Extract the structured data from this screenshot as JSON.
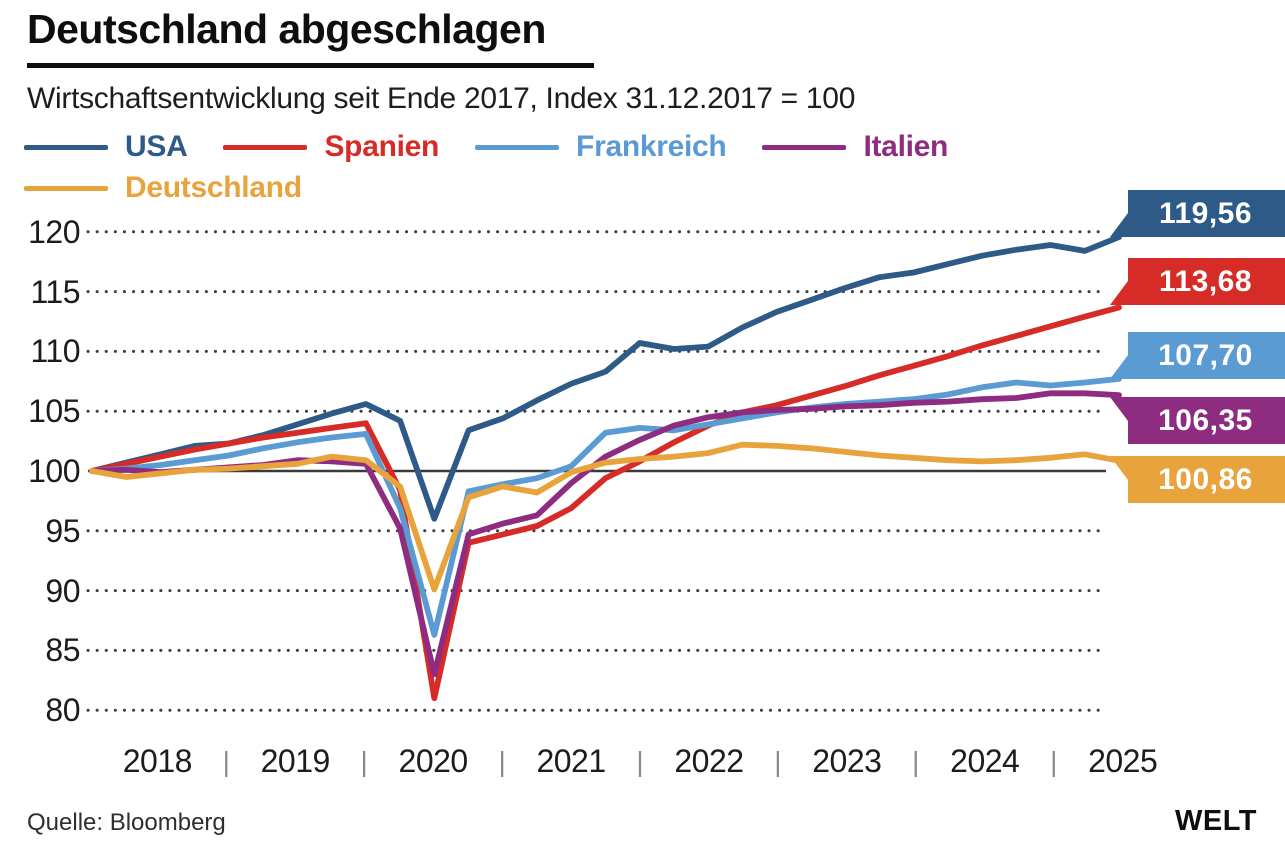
{
  "header": {
    "title": "Deutschland abgeschlagen",
    "subtitle": "Wirtschaftsentwicklung seit Ende 2017, Index 31.12.2017 = 100"
  },
  "legend": [
    {
      "label": "USA",
      "color": "#2d5a87"
    },
    {
      "label": "Spanien",
      "color": "#d62b26"
    },
    {
      "label": "Frankreich",
      "color": "#5a9bd4"
    },
    {
      "label": "Italien",
      "color": "#8e2c82"
    },
    {
      "label": "Deutschland",
      "color": "#e8a33d"
    }
  ],
  "footer": {
    "source": "Quelle: Bloomberg",
    "brand": "WELT"
  },
  "chart_data": {
    "type": "line",
    "title": "Deutschland abgeschlagen",
    "subtitle": "Wirtschaftsentwicklung seit Ende 2017, Index 31.12.2017 = 100",
    "legend_position": "top",
    "grid": "dotted horizontal, solid baseline at 100",
    "x_axis": {
      "tick_labels": [
        "2018",
        "2019",
        "2020",
        "2021",
        "2022",
        "2023",
        "2024",
        "2025"
      ],
      "separator": "|",
      "points": "quarterly from 2017-Q4 (=100) to 2025-Q2"
    },
    "y_axis": {
      "ticks": [
        120,
        115,
        110,
        105,
        100,
        95,
        90,
        85,
        80
      ],
      "range": [
        78,
        122
      ],
      "baseline": 100
    },
    "series": [
      {
        "name": "USA",
        "color": "#2d5a87",
        "final_label": "119,56",
        "final_value": 119.56,
        "values": [
          100,
          100.7,
          101.4,
          102.1,
          102.3,
          103.0,
          103.9,
          104.8,
          105.6,
          104.2,
          96.0,
          103.4,
          104.4,
          105.9,
          107.3,
          108.3,
          110.7,
          110.2,
          110.4,
          112.0,
          113.3,
          114.3,
          115.3,
          116.2,
          116.6,
          117.3,
          118.0,
          118.5,
          118.9,
          118.4,
          119.56
        ]
      },
      {
        "name": "Spanien",
        "color": "#d62b26",
        "final_label": "113,68",
        "final_value": 113.68,
        "values": [
          100,
          100.6,
          101.2,
          101.8,
          102.3,
          102.8,
          103.2,
          103.6,
          104.0,
          98.4,
          81.0,
          94.0,
          94.7,
          95.4,
          96.9,
          99.4,
          100.8,
          102.4,
          103.8,
          104.9,
          105.5,
          106.3,
          107.1,
          108.0,
          108.8,
          109.6,
          110.5,
          111.3,
          112.1,
          112.9,
          113.68
        ]
      },
      {
        "name": "Frankreich",
        "color": "#5a9bd4",
        "final_label": "107,70",
        "final_value": 107.7,
        "values": [
          100,
          100.2,
          100.5,
          100.9,
          101.3,
          101.9,
          102.4,
          102.8,
          103.1,
          96.9,
          86.3,
          98.3,
          98.9,
          99.4,
          100.4,
          103.2,
          103.6,
          103.4,
          103.9,
          104.4,
          104.9,
          105.3,
          105.6,
          105.8,
          106.0,
          106.4,
          107.0,
          107.4,
          107.15,
          107.4,
          107.7
        ]
      },
      {
        "name": "Italien",
        "color": "#8e2c82",
        "final_label": "106,35",
        "final_value": 106.35,
        "values": [
          100,
          100.1,
          99.9,
          100.1,
          100.3,
          100.5,
          100.9,
          100.8,
          100.6,
          95.2,
          83.0,
          94.7,
          95.6,
          96.3,
          99.0,
          101.2,
          102.6,
          103.8,
          104.5,
          104.9,
          105.1,
          105.2,
          105.4,
          105.5,
          105.7,
          105.8,
          106.0,
          106.1,
          106.5,
          106.5,
          106.35
        ]
      },
      {
        "name": "Deutschland",
        "color": "#e8a33d",
        "final_label": "100,86",
        "final_value": 100.86,
        "values": [
          100,
          99.5,
          99.8,
          100.1,
          100.2,
          100.4,
          100.6,
          101.2,
          100.9,
          98.7,
          90.1,
          97.8,
          98.7,
          98.2,
          99.9,
          100.7,
          101.0,
          101.2,
          101.5,
          102.2,
          102.1,
          101.9,
          101.6,
          101.3,
          101.1,
          100.9,
          100.8,
          100.9,
          101.1,
          101.4,
          100.86
        ]
      }
    ]
  }
}
